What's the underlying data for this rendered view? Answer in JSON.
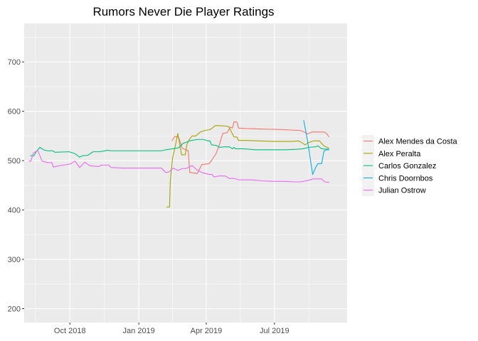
{
  "chart_data": {
    "type": "line",
    "title": "Rumors Never Die Player Ratings",
    "xlabel": "",
    "ylabel": "",
    "grid": true,
    "legend_position": "right",
    "x_type": "date",
    "xlim": [
      "2018-08-01",
      "2019-10-06"
    ],
    "ylim": [
      172,
      778
    ],
    "y_ticks": [
      200,
      300,
      400,
      500,
      600,
      700
    ],
    "x_ticks": [
      {
        "label": "Oct 2018",
        "date": "2018-10-01"
      },
      {
        "label": "Jan 2019",
        "date": "2019-01-01"
      },
      {
        "label": "Apr 2019",
        "date": "2019-04-01"
      },
      {
        "label": "Jul 2019",
        "date": "2019-07-01"
      }
    ],
    "series": [
      {
        "name": "Alex Mendes da Costa",
        "color": "#F8766D",
        "points": [
          [
            "2019-02-14",
            540
          ],
          [
            "2019-02-18",
            549
          ],
          [
            "2019-02-23",
            548
          ],
          [
            "2019-02-28",
            525
          ],
          [
            "2019-03-05",
            522
          ],
          [
            "2019-03-08",
            520
          ],
          [
            "2019-03-10",
            476
          ],
          [
            "2019-03-20",
            474
          ],
          [
            "2019-03-26",
            492
          ],
          [
            "2019-04-05",
            494
          ],
          [
            "2019-04-10",
            505
          ],
          [
            "2019-04-14",
            514
          ],
          [
            "2019-04-18",
            530
          ],
          [
            "2019-04-23",
            555
          ],
          [
            "2019-04-29",
            557
          ],
          [
            "2019-05-03",
            568
          ],
          [
            "2019-05-06",
            566
          ],
          [
            "2019-05-08",
            579
          ],
          [
            "2019-05-12",
            578
          ],
          [
            "2019-05-14",
            566
          ],
          [
            "2019-05-25",
            565
          ],
          [
            "2019-06-15",
            564
          ],
          [
            "2019-07-10",
            563
          ],
          [
            "2019-08-05",
            561
          ],
          [
            "2019-08-10",
            558
          ],
          [
            "2019-08-14",
            554
          ],
          [
            "2019-08-20",
            558
          ],
          [
            "2019-09-05",
            558
          ],
          [
            "2019-09-08",
            556
          ],
          [
            "2019-09-12",
            548
          ]
        ]
      },
      {
        "name": "Alex Peralta",
        "color": "#A3A500",
        "points": [
          [
            "2019-02-07",
            406
          ],
          [
            "2019-02-11",
            406
          ],
          [
            "2019-02-12",
            458
          ],
          [
            "2019-02-15",
            505
          ],
          [
            "2019-02-18",
            525
          ],
          [
            "2019-02-22",
            555
          ],
          [
            "2019-02-25",
            530
          ],
          [
            "2019-02-27",
            512
          ],
          [
            "2019-03-04",
            512
          ],
          [
            "2019-03-06",
            532
          ],
          [
            "2019-03-09",
            542
          ],
          [
            "2019-03-13",
            550
          ],
          [
            "2019-03-18",
            550
          ],
          [
            "2019-03-24",
            558
          ],
          [
            "2019-03-30",
            561
          ],
          [
            "2019-04-06",
            563
          ],
          [
            "2019-04-09",
            566
          ],
          [
            "2019-04-13",
            571
          ],
          [
            "2019-04-18",
            571
          ],
          [
            "2019-04-27",
            570
          ],
          [
            "2019-05-01",
            569
          ],
          [
            "2019-05-04",
            560
          ],
          [
            "2019-05-08",
            548
          ],
          [
            "2019-05-12",
            548
          ],
          [
            "2019-05-14",
            541
          ],
          [
            "2019-05-25",
            541
          ],
          [
            "2019-06-10",
            540
          ],
          [
            "2019-07-01",
            539
          ],
          [
            "2019-07-25",
            539
          ],
          [
            "2019-08-02",
            540
          ],
          [
            "2019-08-06",
            537
          ],
          [
            "2019-08-11",
            532
          ],
          [
            "2019-08-16",
            537
          ],
          [
            "2019-08-22",
            540
          ],
          [
            "2019-08-30",
            540
          ],
          [
            "2019-09-05",
            530
          ],
          [
            "2019-09-12",
            525
          ]
        ]
      },
      {
        "name": "Carlos Gonzalez",
        "color": "#00BF7D",
        "points": [
          [
            "2018-08-09",
            510
          ],
          [
            "2018-08-14",
            510
          ],
          [
            "2018-08-17",
            518
          ],
          [
            "2018-08-22",
            527
          ],
          [
            "2018-08-27",
            522
          ],
          [
            "2018-09-01",
            520
          ],
          [
            "2018-09-08",
            520
          ],
          [
            "2018-09-11",
            517
          ],
          [
            "2018-09-30",
            518
          ],
          [
            "2018-10-08",
            514
          ],
          [
            "2018-10-14",
            507
          ],
          [
            "2018-10-18",
            510
          ],
          [
            "2018-10-25",
            511
          ],
          [
            "2018-11-01",
            518
          ],
          [
            "2018-11-10",
            518
          ],
          [
            "2018-11-20",
            521
          ],
          [
            "2018-11-25",
            520
          ],
          [
            "2018-12-10",
            520
          ],
          [
            "2019-01-10",
            520
          ],
          [
            "2019-01-31",
            520
          ],
          [
            "2019-02-06",
            522
          ],
          [
            "2019-02-15",
            524
          ],
          [
            "2019-02-23",
            526
          ],
          [
            "2019-03-01",
            535
          ],
          [
            "2019-03-10",
            540
          ],
          [
            "2019-03-20",
            543
          ],
          [
            "2019-03-28",
            543
          ],
          [
            "2019-04-03",
            540
          ],
          [
            "2019-04-06",
            540
          ],
          [
            "2019-04-08",
            532
          ],
          [
            "2019-04-14",
            531
          ],
          [
            "2019-04-19",
            527
          ],
          [
            "2019-04-26",
            528
          ],
          [
            "2019-05-02",
            528
          ],
          [
            "2019-05-06",
            524
          ],
          [
            "2019-05-08",
            527
          ],
          [
            "2019-05-10",
            524
          ],
          [
            "2019-05-20",
            524
          ],
          [
            "2019-05-30",
            523
          ],
          [
            "2019-06-05",
            522
          ],
          [
            "2019-06-20",
            522
          ],
          [
            "2019-07-15",
            522
          ],
          [
            "2019-07-30",
            523
          ],
          [
            "2019-08-08",
            524
          ],
          [
            "2019-08-16",
            527
          ],
          [
            "2019-08-25",
            528
          ],
          [
            "2019-08-28",
            530
          ],
          [
            "2019-09-02",
            524
          ],
          [
            "2019-09-12",
            523
          ]
        ]
      },
      {
        "name": "Chris Doornbos",
        "color": "#00B0F6",
        "points": [
          [
            "2019-08-09",
            582
          ],
          [
            "2019-08-14",
            542
          ],
          [
            "2019-08-21",
            472
          ],
          [
            "2019-08-25",
            486
          ],
          [
            "2019-08-28",
            494
          ],
          [
            "2019-09-02",
            494
          ],
          [
            "2019-09-05",
            519
          ],
          [
            "2019-09-08",
            522
          ],
          [
            "2019-09-12",
            522
          ]
        ]
      },
      {
        "name": "Julian Ostrow",
        "color": "#E76BF3",
        "points": [
          [
            "2018-08-07",
            499
          ],
          [
            "2018-08-10",
            499
          ],
          [
            "2018-08-13",
            515
          ],
          [
            "2018-08-19",
            521
          ],
          [
            "2018-08-25",
            499
          ],
          [
            "2018-09-02",
            496
          ],
          [
            "2018-09-07",
            496
          ],
          [
            "2018-09-09",
            487
          ],
          [
            "2018-09-18",
            490
          ],
          [
            "2018-10-01",
            493
          ],
          [
            "2018-10-08",
            499
          ],
          [
            "2018-10-14",
            486
          ],
          [
            "2018-10-21",
            497
          ],
          [
            "2018-10-27",
            490
          ],
          [
            "2018-11-01",
            489
          ],
          [
            "2018-11-09",
            488
          ],
          [
            "2018-11-12",
            491
          ],
          [
            "2018-11-22",
            491
          ],
          [
            "2018-11-25",
            486
          ],
          [
            "2018-12-10",
            485
          ],
          [
            "2019-01-10",
            485
          ],
          [
            "2019-01-31",
            485
          ],
          [
            "2019-02-06",
            476
          ],
          [
            "2019-02-10",
            477
          ],
          [
            "2019-02-16",
            485
          ],
          [
            "2019-02-22",
            480
          ],
          [
            "2019-02-28",
            484
          ],
          [
            "2019-03-05",
            484
          ],
          [
            "2019-03-13",
            490
          ],
          [
            "2019-03-19",
            482
          ],
          [
            "2019-03-26",
            476
          ],
          [
            "2019-04-05",
            472
          ],
          [
            "2019-04-09",
            472
          ],
          [
            "2019-04-11",
            467
          ],
          [
            "2019-04-18",
            469
          ],
          [
            "2019-04-26",
            469
          ],
          [
            "2019-05-02",
            464
          ],
          [
            "2019-05-08",
            464
          ],
          [
            "2019-05-15",
            461
          ],
          [
            "2019-06-01",
            461
          ],
          [
            "2019-06-15",
            459
          ],
          [
            "2019-07-01",
            458
          ],
          [
            "2019-07-15",
            458
          ],
          [
            "2019-07-28",
            457
          ],
          [
            "2019-08-05",
            457
          ],
          [
            "2019-08-15",
            460
          ],
          [
            "2019-08-22",
            463
          ],
          [
            "2019-09-02",
            463
          ],
          [
            "2019-09-06",
            457
          ],
          [
            "2019-09-12",
            456
          ]
        ]
      }
    ]
  }
}
